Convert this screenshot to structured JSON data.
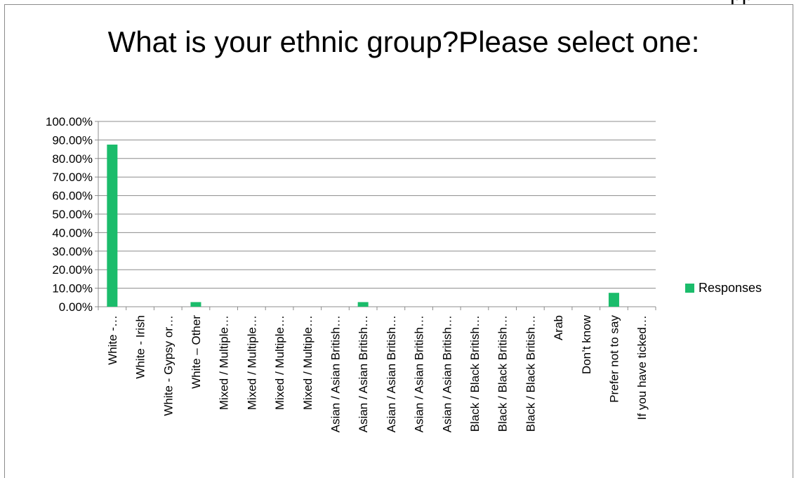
{
  "top_fragment": "pp",
  "chart_data": {
    "type": "bar",
    "title": "What is your ethnic group?Please select one:",
    "xlabel": "",
    "ylabel": "",
    "ylim": [
      0,
      1
    ],
    "ytick_labels": [
      "0.00%",
      "10.00%",
      "20.00%",
      "30.00%",
      "40.00%",
      "50.00%",
      "60.00%",
      "70.00%",
      "80.00%",
      "90.00%",
      "100.00%"
    ],
    "categories": [
      "White -…",
      "White - Irish",
      "White - Gypsy or…",
      "White – Other",
      "Mixed / Multiple…",
      "Mixed / Multiple…",
      "Mixed / Multiple…",
      "Mixed / Multiple…",
      "Asian / Asian British…",
      "Asian / Asian British…",
      "Asian / Asian British…",
      "Asian / Asian British…",
      "Asian / Asian British…",
      "Black / Black British…",
      "Black / Black British…",
      "Black / Black British…",
      "Arab",
      "Don’t know",
      "Prefer not to say",
      "If you have ticked…"
    ],
    "series": [
      {
        "name": "Responses",
        "color": "#1bbc6b",
        "values": [
          0.875,
          0,
          0,
          0.025,
          0,
          0,
          0,
          0,
          0,
          0.025,
          0,
          0,
          0,
          0,
          0,
          0,
          0,
          0,
          0.075,
          0
        ]
      }
    ],
    "grid": true,
    "legend_position": "right"
  }
}
